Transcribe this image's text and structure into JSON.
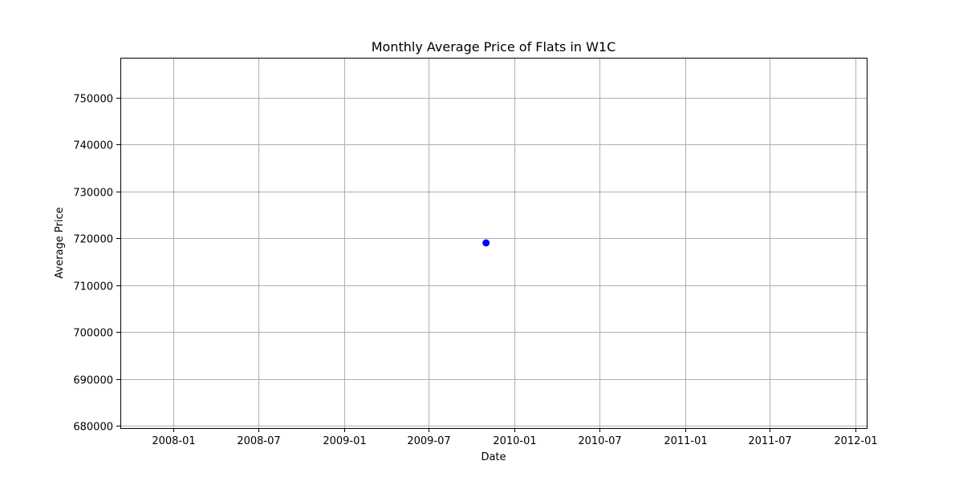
{
  "chart_data": {
    "type": "scatter",
    "title": "Monthly Average Price of Flats in W1C",
    "xlabel": "Date",
    "ylabel": "Average Price",
    "x_ticks": [
      "2008-01",
      "2008-07",
      "2009-01",
      "2009-07",
      "2010-01",
      "2010-07",
      "2011-01",
      "2011-07",
      "2012-01"
    ],
    "y_ticks": [
      680000,
      690000,
      700000,
      710000,
      720000,
      730000,
      740000,
      750000
    ],
    "xlim": [
      "2007-09-10",
      "2012-01-25"
    ],
    "ylim": [
      679500,
      758500
    ],
    "grid": true,
    "legend": "none",
    "series": [
      {
        "color": "#0000ff",
        "points": [
          {
            "x": "2009-11-01",
            "y": 719000
          }
        ]
      }
    ]
  }
}
